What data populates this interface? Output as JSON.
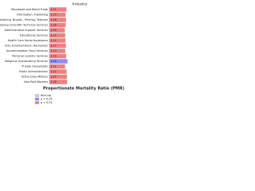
{
  "chart_data": {
    "type": "hbar",
    "title": "Industry",
    "x_label": "Proportionate Mortality Ratio (PMR)",
    "categories": [
      "Wholesale and Retail Trade",
      "Information, Publishing",
      "Pr. Media, Publishing, Broadc., Printing, Telecom",
      "Professional Scientific Technical Services",
      "Administrative Support Services",
      "Educational Services",
      "Health Care Social Assistance",
      "Arts, Entertainment, Recreation",
      "Accommodation Food Services",
      "Personal Laundry Services",
      "Religious Grantmaking Services",
      "Private Households",
      "Public Administration",
      "Active Duty Military",
      "Non-Paid Workers"
    ],
    "values": [
      1.21,
      1.15,
      1.18,
      1.16,
      1.09,
      1.12,
      1.14,
      1.17,
      1.13,
      1.19,
      1.28,
      1.11,
      1.22,
      1.24,
      1.26
    ],
    "colors": [
      "#f08080",
      "#f08080",
      "#f08080",
      "#f08080",
      "#f08080",
      "#f08080",
      "#f08080",
      "#f08080",
      "#f08080",
      "#f08080",
      "#8c8cff",
      "#f08080",
      "#f08080",
      "#f08080",
      "#f08080"
    ],
    "xlim": [
      0,
      5
    ],
    "legend": [
      {
        "name": "Non-sig",
        "color": "#d0d0d0"
      },
      {
        "name": "p < 0.05",
        "color": "#8c8cff"
      },
      {
        "name": "p < 0.01",
        "color": "#f08080"
      }
    ]
  }
}
